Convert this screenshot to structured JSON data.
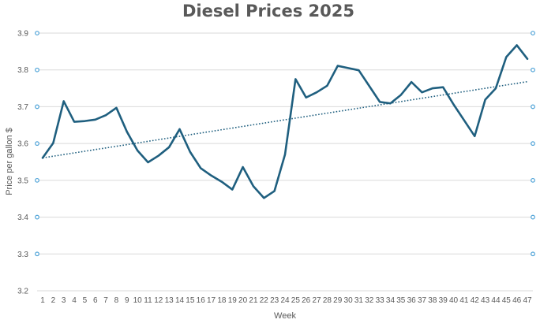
{
  "chart_data": {
    "type": "line",
    "title": "Diesel Prices 2025",
    "xlabel": "Week",
    "ylabel": "Price per gallon $",
    "ylim": [
      3.2,
      3.9
    ],
    "yticks": [
      "3.2",
      "3.3",
      "3.4",
      "3.5",
      "3.6",
      "3.7",
      "3.8",
      "3.9"
    ],
    "grid": true,
    "legend": "none",
    "x": [
      1,
      2,
      3,
      4,
      5,
      6,
      7,
      8,
      9,
      10,
      11,
      12,
      13,
      14,
      15,
      16,
      17,
      18,
      19,
      20,
      21,
      22,
      23,
      24,
      25,
      26,
      27,
      28,
      29,
      30,
      31,
      32,
      33,
      34,
      35,
      36,
      37,
      38,
      39,
      40,
      41,
      42,
      43,
      44,
      45,
      46,
      47
    ],
    "series": [
      {
        "values": [
          3.561,
          3.601,
          3.715,
          3.659,
          3.661,
          3.665,
          3.677,
          3.697,
          3.632,
          3.581,
          3.549,
          3.567,
          3.59,
          3.639,
          3.577,
          3.533,
          3.513,
          3.496,
          3.475,
          3.536,
          3.484,
          3.452,
          3.471,
          3.57,
          3.775,
          3.725,
          3.739,
          3.757,
          3.811,
          3.805,
          3.799,
          3.756,
          3.713,
          3.709,
          3.732,
          3.767,
          3.739,
          3.75,
          3.753,
          3.706,
          3.663,
          3.62,
          3.719,
          3.75,
          3.835,
          3.867,
          3.83
        ],
        "color": "#1f5f7f"
      }
    ],
    "trendline": {
      "style": "dotted",
      "start": 3.561,
      "end": 3.768,
      "color": "#1f5f7f"
    },
    "marker_color": "#4ea3d8",
    "grid_color": "#d9d9d9"
  }
}
